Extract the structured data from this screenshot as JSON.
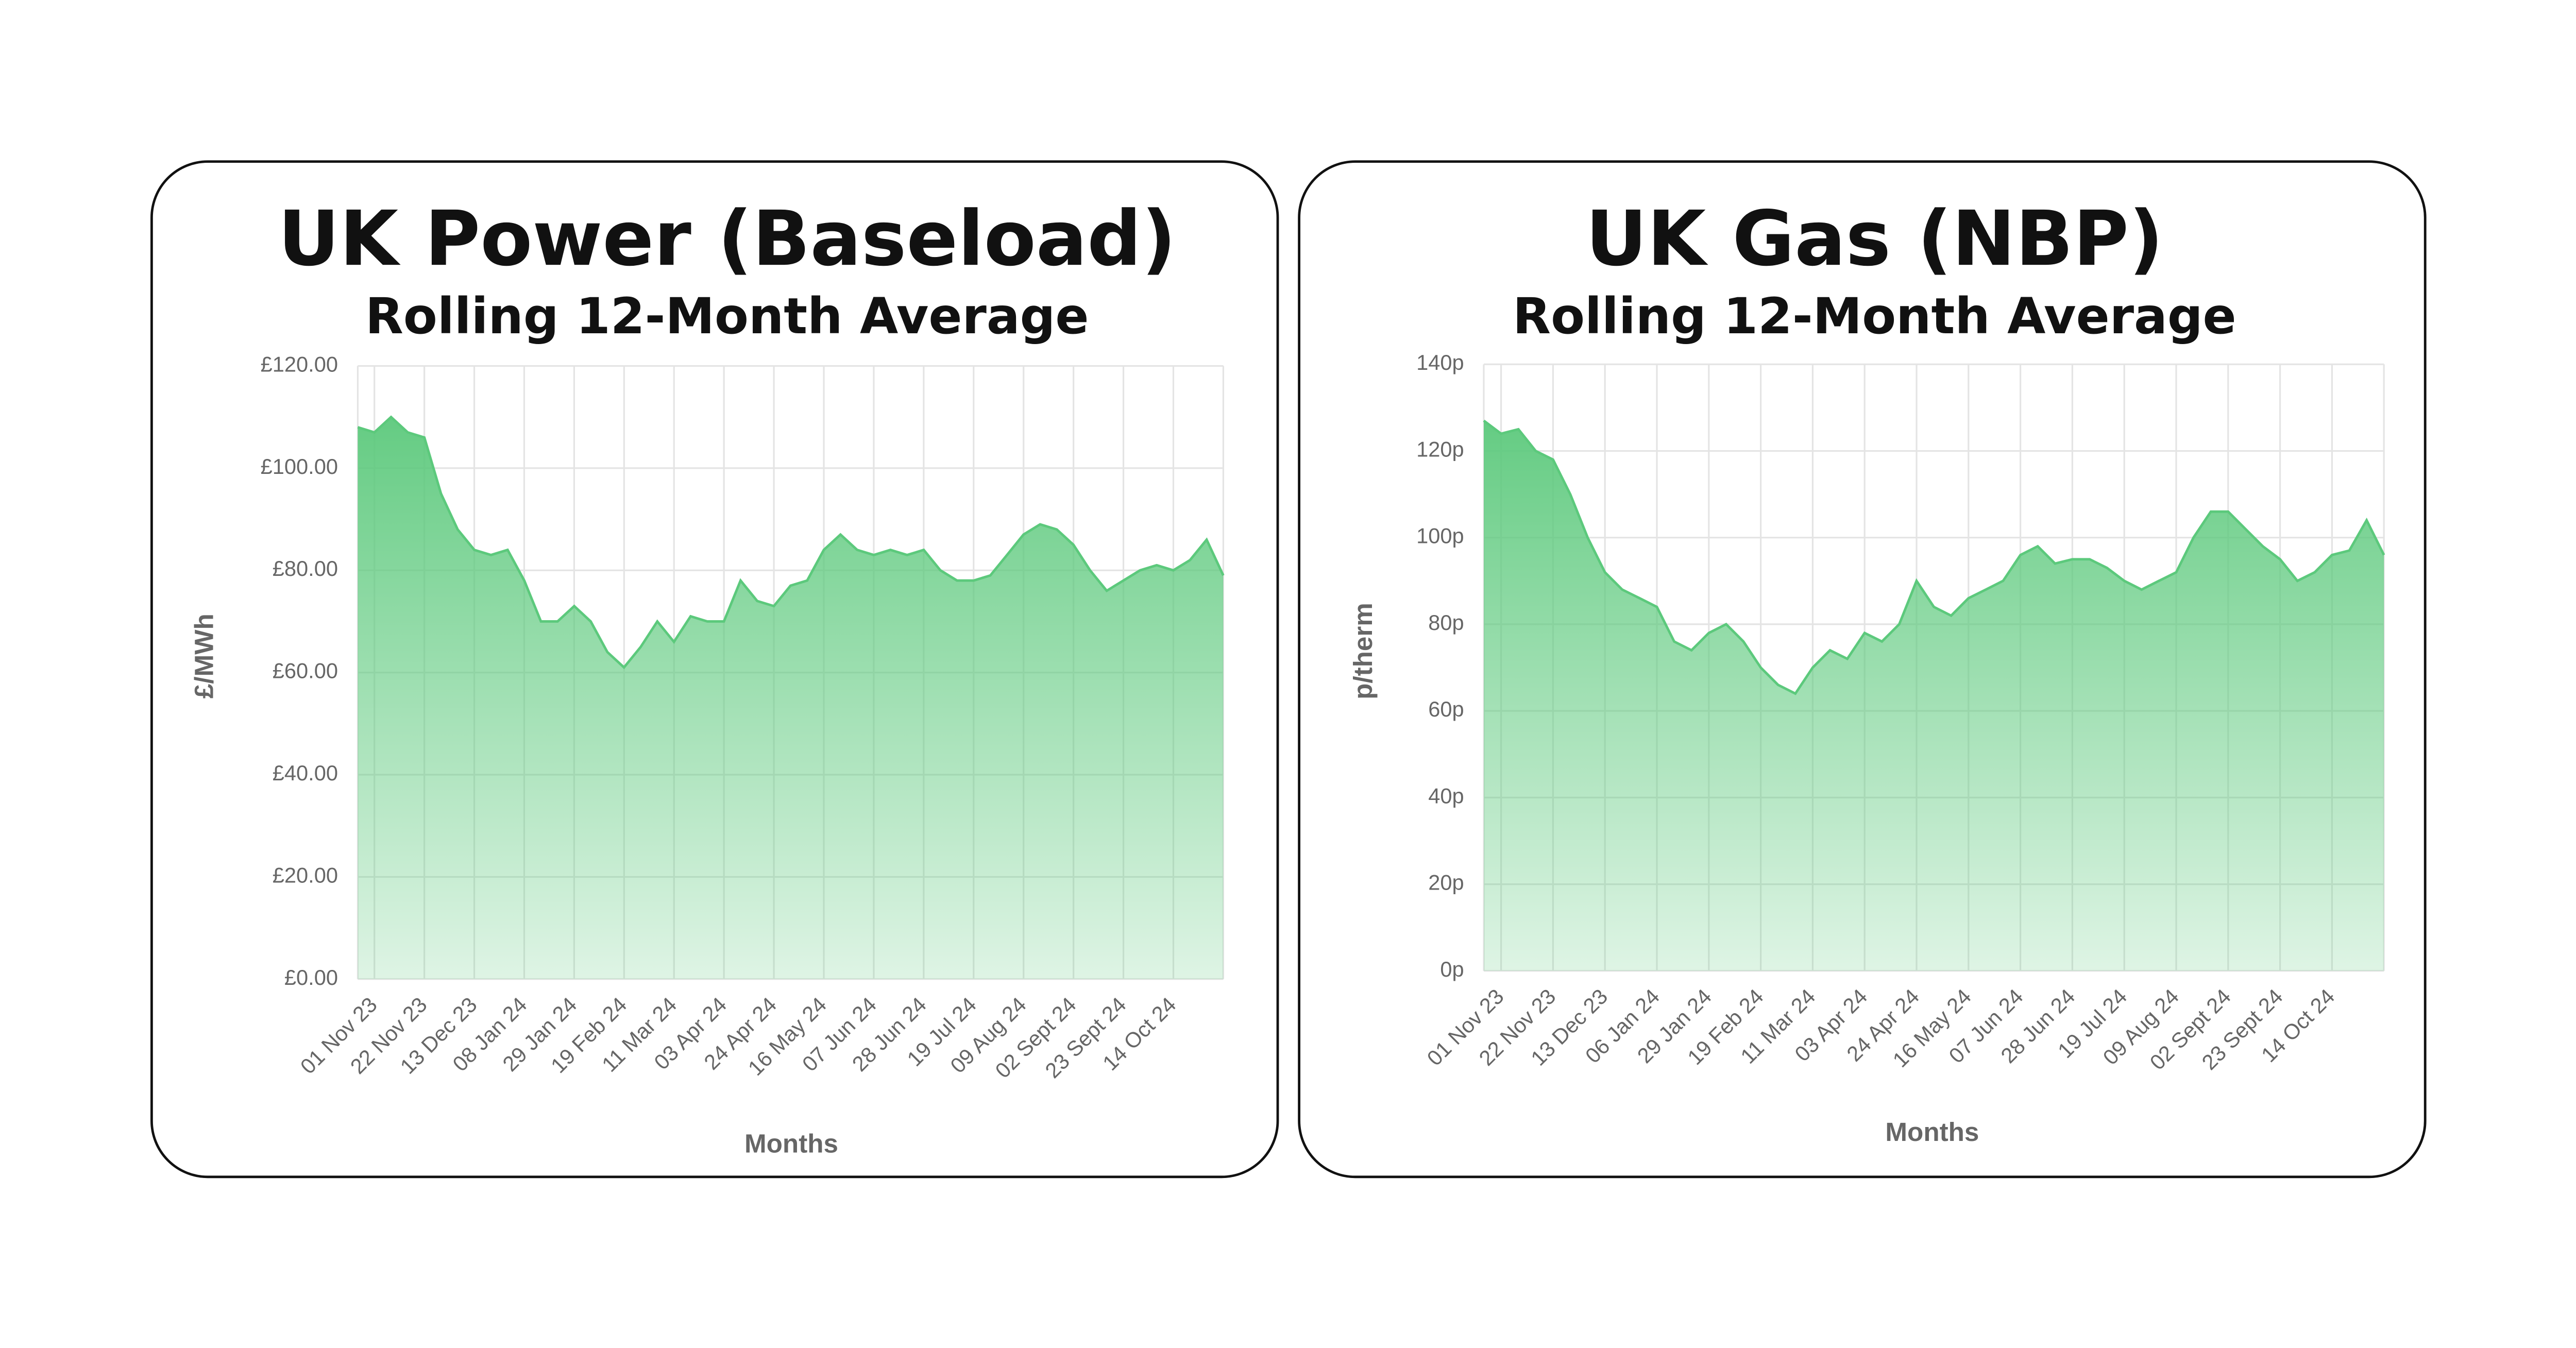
{
  "chart_data": [
    {
      "type": "area",
      "title": "UK Power (Baseload)",
      "subtitle": "Rolling 12-Month Average",
      "xlabel": "Months",
      "ylabel": "£/MWh",
      "categories": [
        null,
        "01 Nov 23",
        null,
        null,
        "22 Nov 23",
        null,
        null,
        "13 Dec 23",
        null,
        null,
        "08 Jan 24",
        null,
        null,
        "29 Jan 24",
        null,
        null,
        "19 Feb 24",
        null,
        null,
        "11 Mar 24",
        null,
        null,
        "03 Apr 24",
        null,
        null,
        "24 Apr 24",
        null,
        null,
        "16 May 24",
        null,
        null,
        "07 Jun 24",
        null,
        null,
        "28 Jun 24",
        null,
        null,
        "19 Jul 24",
        null,
        null,
        "09 Aug 24",
        null,
        null,
        "02 Sept 24",
        null,
        null,
        "23 Sept 24",
        null,
        null,
        "14 Oct 24",
        null,
        null,
        null
      ],
      "values": [
        108,
        107,
        110,
        107,
        106,
        95,
        88,
        84,
        83,
        84,
        78,
        70,
        70,
        73,
        70,
        64,
        61,
        65,
        70,
        66,
        71,
        70,
        70,
        78,
        74,
        73,
        77,
        78,
        84,
        87,
        84,
        83,
        84,
        83,
        84,
        80,
        78,
        78,
        79,
        83,
        87,
        89,
        88,
        85,
        80,
        76,
        78,
        80,
        81,
        80,
        82,
        86,
        79
      ],
      "color": "#5cc97c",
      "ylim": [
        0,
        120
      ],
      "yticks": [
        {
          "value": 0,
          "label": "£0.00"
        },
        {
          "value": 20,
          "label": "£20.00"
        },
        {
          "value": 40,
          "label": "£40.00"
        },
        {
          "value": 60,
          "label": "£60.00"
        },
        {
          "value": 80,
          "label": "£80.00"
        },
        {
          "value": 100,
          "label": "£100.00"
        },
        {
          "value": 120,
          "label": "£120.00"
        }
      ],
      "grid": true
    },
    {
      "type": "area",
      "title": "UK Gas (NBP)",
      "subtitle": "Rolling 12-Month Average",
      "xlabel": "Months",
      "ylabel": "p/therm",
      "categories": [
        null,
        "01 Nov 23",
        null,
        null,
        "22 Nov 23",
        null,
        null,
        "13 Dec 23",
        null,
        null,
        "06 Jan 24",
        null,
        null,
        "29 Jan 24",
        null,
        null,
        "19 Feb 24",
        null,
        null,
        "11 Mar 24",
        null,
        null,
        "03 Apr 24",
        null,
        null,
        "24 Apr 24",
        null,
        null,
        "16 May 24",
        null,
        null,
        "07 Jun 24",
        null,
        null,
        "28 Jun 24",
        null,
        null,
        "19 Jul 24",
        null,
        null,
        "09 Aug 24",
        null,
        null,
        "02 Sept 24",
        null,
        null,
        "23 Sept 24",
        null,
        null,
        "14 Oct 24",
        null,
        null,
        null
      ],
      "values": [
        127,
        124,
        125,
        120,
        118,
        110,
        100,
        92,
        88,
        86,
        84,
        76,
        74,
        78,
        80,
        76,
        70,
        66,
        64,
        70,
        74,
        72,
        78,
        76,
        80,
        90,
        84,
        82,
        86,
        88,
        90,
        96,
        98,
        94,
        95,
        95,
        93,
        90,
        88,
        90,
        92,
        100,
        106,
        106,
        102,
        98,
        95,
        90,
        92,
        96,
        97,
        104,
        96
      ],
      "color": "#5cc97c",
      "ylim": [
        0,
        140
      ],
      "yticks": [
        {
          "value": 0,
          "label": "0p"
        },
        {
          "value": 20,
          "label": "20p"
        },
        {
          "value": 40,
          "label": "40p"
        },
        {
          "value": 60,
          "label": "60p"
        },
        {
          "value": 80,
          "label": "80p"
        },
        {
          "value": 100,
          "label": "100p"
        },
        {
          "value": 120,
          "label": "120p"
        },
        {
          "value": 140,
          "label": "140p"
        }
      ],
      "grid": true
    }
  ]
}
